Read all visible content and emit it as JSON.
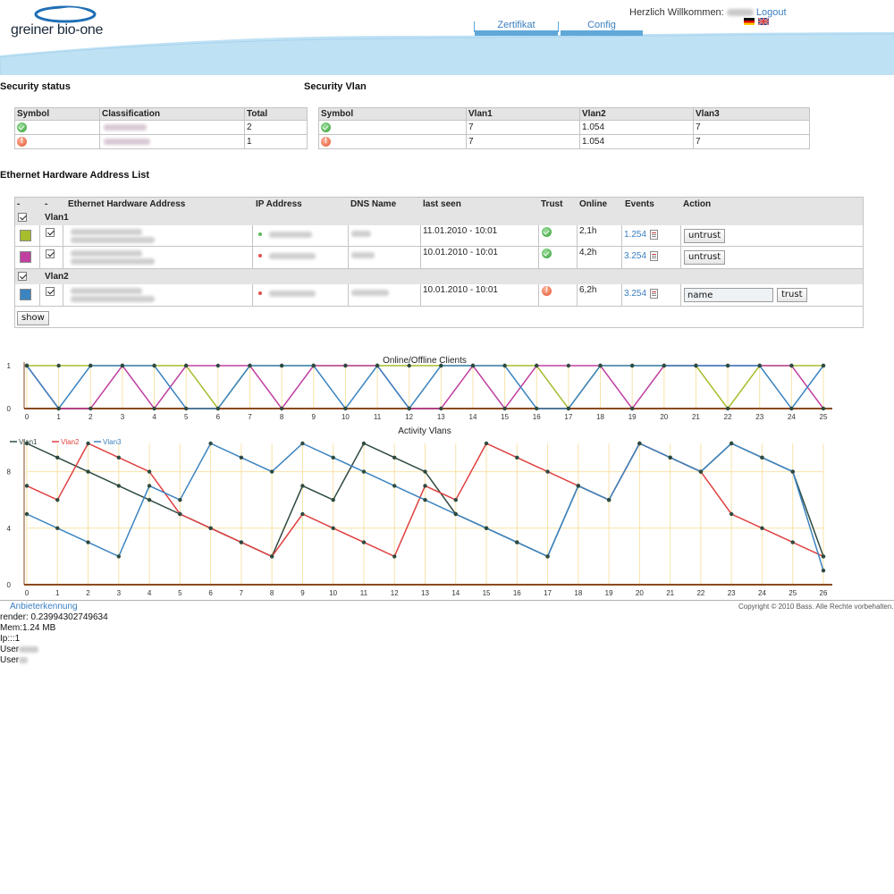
{
  "header": {
    "brand": "greiner bio-one",
    "nav": [
      {
        "label": "Zertifikat"
      },
      {
        "label": "Config"
      }
    ],
    "welcome": "Herzlich Willkommen:",
    "logout": "Logout"
  },
  "security_status": {
    "title": "Security status",
    "columns": [
      "Symbol",
      "Classification",
      "Total"
    ],
    "rows": [
      {
        "status": "ok",
        "total": "2"
      },
      {
        "status": "bad",
        "total": "1"
      }
    ]
  },
  "security_vlan": {
    "title": "Security Vlan",
    "columns": [
      "Symbol",
      "Vlan1",
      "Vlan2",
      "Vlan3"
    ],
    "rows": [
      {
        "status": "ok",
        "vlan1": "7",
        "vlan2": "1.054",
        "vlan3": "7"
      },
      {
        "status": "bad",
        "vlan1": "7",
        "vlan2": "1.054",
        "vlan3": "7"
      }
    ]
  },
  "ethernet": {
    "title": "Ethernet Hardware Address List",
    "columns": [
      "-",
      "-",
      "Ethernet Hardware Address",
      "IP Address",
      "DNS Name",
      "last seen",
      "Trust",
      "Online",
      "Events",
      "Action"
    ],
    "groups": [
      {
        "label": "Vlan1",
        "rows": [
          {
            "color": "#a8bd2e",
            "dot": "#5cb85c",
            "last_seen": "11.01.2010 - 10:01",
            "trust": "ok",
            "online": "2,1h",
            "events": "1.254",
            "action": "untrust"
          },
          {
            "color": "#c040a0",
            "dot": "#e05050",
            "last_seen": "10.01.2010 - 10:01",
            "trust": "ok",
            "online": "4,2h",
            "events": "3.254",
            "action": "untrust"
          }
        ]
      },
      {
        "label": "Vlan2",
        "rows": [
          {
            "color": "#3c84c0",
            "dot": "#e05050",
            "last_seen": "10.01.2010 - 10:01",
            "trust": "bad",
            "online": "6,2h",
            "events": "3.254",
            "action": "trust",
            "name_value": "name"
          }
        ]
      }
    ],
    "show_button": "show"
  },
  "chart_data": [
    {
      "type": "line",
      "title": "Online/Offline Clients",
      "x": [
        0,
        1,
        2,
        3,
        4,
        5,
        6,
        7,
        8,
        9,
        10,
        11,
        12,
        13,
        14,
        15,
        16,
        17,
        18,
        19,
        20,
        21,
        22,
        23,
        24,
        25
      ],
      "ylim": [
        0,
        1
      ],
      "yticks": [
        0,
        1
      ],
      "grid": true,
      "series": [
        {
          "color": "#a8bd2e",
          "values": [
            1,
            1,
            1,
            1,
            1,
            1,
            0,
            1,
            1,
            1,
            1,
            1,
            1,
            1,
            1,
            1,
            1,
            0,
            1,
            1,
            1,
            1,
            0,
            1,
            1,
            1
          ]
        },
        {
          "color": "#c040a0",
          "values": [
            1,
            0,
            0,
            1,
            0,
            1,
            1,
            1,
            0,
            1,
            1,
            1,
            0,
            0,
            1,
            0,
            1,
            1,
            1,
            0,
            1,
            1,
            1,
            1,
            1,
            0
          ]
        },
        {
          "color": "#3c84c0",
          "values": [
            1,
            0,
            1,
            1,
            1,
            0,
            0,
            1,
            1,
            1,
            0,
            1,
            0,
            1,
            1,
            1,
            0,
            0,
            1,
            1,
            1,
            1,
            1,
            1,
            0,
            1
          ]
        }
      ]
    },
    {
      "type": "line",
      "title": "Activity Vlans",
      "x": [
        0,
        1,
        2,
        3,
        4,
        5,
        6,
        7,
        8,
        9,
        10,
        11,
        12,
        13,
        14,
        15,
        16,
        17,
        18,
        19,
        20,
        21,
        22,
        23,
        24,
        25,
        26
      ],
      "ylim": [
        0,
        10
      ],
      "yticks": [
        0,
        4,
        8
      ],
      "grid": true,
      "legend": "top-left",
      "series": [
        {
          "name": "Vlan1",
          "color": "#2e4a40",
          "values": [
            10,
            9,
            8,
            7,
            6,
            5,
            4,
            3,
            2,
            7,
            6,
            10,
            9,
            8,
            5,
            4,
            3,
            2,
            7,
            6,
            10,
            9,
            8,
            10,
            9,
            8,
            2
          ]
        },
        {
          "name": "Vlan2",
          "color": "#e04040",
          "values": [
            7,
            6,
            10,
            9,
            8,
            5,
            4,
            3,
            2,
            5,
            4,
            3,
            2,
            7,
            6,
            10,
            9,
            8,
            7,
            6,
            10,
            9,
            8,
            5,
            4,
            3,
            2
          ]
        },
        {
          "name": "Vlan3",
          "color": "#3c84c0",
          "values": [
            5,
            4,
            3,
            2,
            7,
            6,
            10,
            9,
            8,
            10,
            9,
            8,
            7,
            6,
            5,
            4,
            3,
            2,
            7,
            6,
            10,
            9,
            8,
            10,
            9,
            8,
            1
          ]
        }
      ]
    }
  ],
  "footer": {
    "anbieter": "Anbieterkennung",
    "copyright": "Copyright © 2010 Bass. Alle Rechte vorbehalten.",
    "debug": [
      "render: 0.23994302749634",
      "Mem:1.24 MB",
      "Ip:::1",
      "User",
      "User"
    ]
  }
}
